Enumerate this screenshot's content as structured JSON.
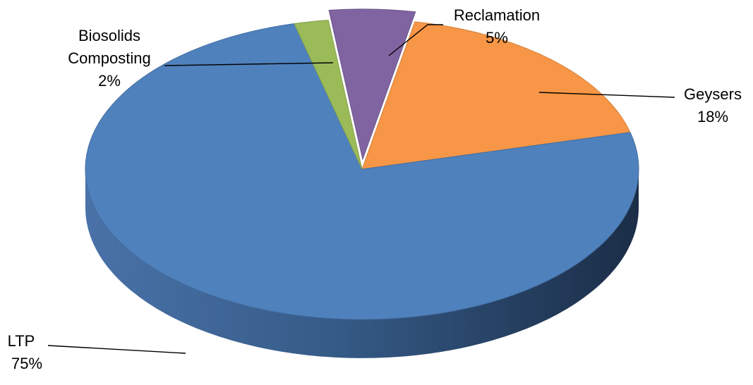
{
  "chart_data": {
    "type": "pie",
    "three_d": true,
    "title": "",
    "legend": "none",
    "slices": [
      {
        "label": "Reclamation",
        "value": 5,
        "percent_label": "5%",
        "color": "#8064a2",
        "exploded": true
      },
      {
        "label": "Geysers",
        "value": 18,
        "percent_label": "18%",
        "color": "#f79646",
        "exploded": false
      },
      {
        "label": "LTP",
        "value": 75,
        "percent_label": "75%",
        "color": "#4f81bd",
        "exploded": false
      },
      {
        "label": "Biosolids Composting",
        "value": 2,
        "percent_label": "2%",
        "color": "#9bbb59",
        "exploded": false
      }
    ]
  }
}
